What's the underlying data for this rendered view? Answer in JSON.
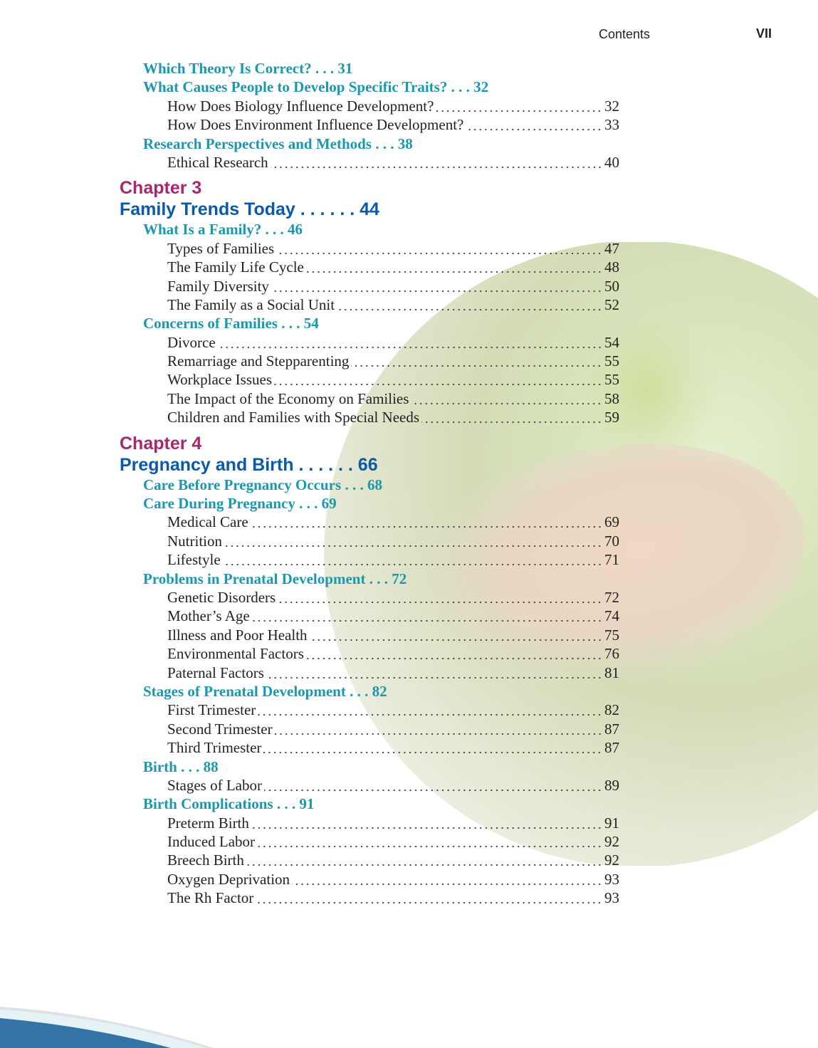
{
  "header": {
    "label": "Contents",
    "page": "VII"
  },
  "toc": [
    {
      "type": "l1",
      "text": "Which Theory Is Correct?",
      "page": "31"
    },
    {
      "type": "l1",
      "text": "What Causes People to Develop Specific Traits?",
      "page": "32"
    },
    {
      "type": "l2",
      "text": "How Does Biology Influence Development?",
      "page": "32"
    },
    {
      "type": "l2",
      "text": "How Does Environment Influence Development?",
      "page": "33"
    },
    {
      "type": "l1",
      "text": "Research Perspectives and Methods",
      "page": "38"
    },
    {
      "type": "l2",
      "text": "Ethical Research",
      "page": "40"
    },
    {
      "type": "ch",
      "text": "Chapter 3"
    },
    {
      "type": "cht",
      "text": "Family Trends Today",
      "page": "44"
    },
    {
      "type": "l1",
      "text": "What Is a Family?",
      "page": "46"
    },
    {
      "type": "l2",
      "text": "Types of Families",
      "page": "47"
    },
    {
      "type": "l2",
      "text": "The Family Life Cycle",
      "page": "48"
    },
    {
      "type": "l2",
      "text": "Family Diversity",
      "page": "50"
    },
    {
      "type": "l2",
      "text": "The Family as a Social Unit",
      "page": "52"
    },
    {
      "type": "l1",
      "text": "Concerns of Families",
      "page": "54"
    },
    {
      "type": "l2",
      "text": "Divorce",
      "page": "54"
    },
    {
      "type": "l2",
      "text": "Remarriage and Stepparenting",
      "page": "55"
    },
    {
      "type": "l2",
      "text": "Workplace Issues",
      "page": "55"
    },
    {
      "type": "l2",
      "text": "The Impact of the Economy on Families",
      "page": "58"
    },
    {
      "type": "l2",
      "text": "Children and Families with Special Needs",
      "page": "59"
    },
    {
      "type": "ch",
      "text": "Chapter 4"
    },
    {
      "type": "cht",
      "text": "Pregnancy and Birth",
      "page": "66"
    },
    {
      "type": "l1",
      "text": "Care Before Pregnancy Occurs",
      "page": "68"
    },
    {
      "type": "l1",
      "text": "Care During Pregnancy",
      "page": "69"
    },
    {
      "type": "l2",
      "text": "Medical Care",
      "page": "69"
    },
    {
      "type": "l2",
      "text": "Nutrition",
      "page": "70"
    },
    {
      "type": "l2",
      "text": "Lifestyle",
      "page": "71"
    },
    {
      "type": "l1",
      "text": "Problems in Prenatal Development",
      "page": "72"
    },
    {
      "type": "l2",
      "text": "Genetic Disorders",
      "page": "72"
    },
    {
      "type": "l2",
      "text": "Mother’s Age",
      "page": "74"
    },
    {
      "type": "l2",
      "text": "Illness and Poor Health",
      "page": "75"
    },
    {
      "type": "l2",
      "text": "Environmental Factors",
      "page": "76"
    },
    {
      "type": "l2",
      "text": "Paternal Factors",
      "page": "81"
    },
    {
      "type": "l1",
      "text": "Stages of Prenatal Development",
      "page": "82"
    },
    {
      "type": "l2",
      "text": "First Trimester",
      "page": "82"
    },
    {
      "type": "l2",
      "text": "Second Trimester",
      "page": "87"
    },
    {
      "type": "l2",
      "text": "Third Trimester",
      "page": "87"
    },
    {
      "type": "l1",
      "text": "Birth",
      "page": "88"
    },
    {
      "type": "l2",
      "text": "Stages of Labor",
      "page": "89"
    },
    {
      "type": "l1",
      "text": "Birth Complications",
      "page": "91"
    },
    {
      "type": "l2",
      "text": "Preterm Birth",
      "page": "91"
    },
    {
      "type": "l2",
      "text": "Induced Labor",
      "page": "92"
    },
    {
      "type": "l2",
      "text": "Breech Birth",
      "page": "92"
    },
    {
      "type": "l2",
      "text": "Oxygen Deprivation",
      "page": "93"
    },
    {
      "type": "l2",
      "text": "The Rh Factor",
      "page": "93"
    }
  ]
}
